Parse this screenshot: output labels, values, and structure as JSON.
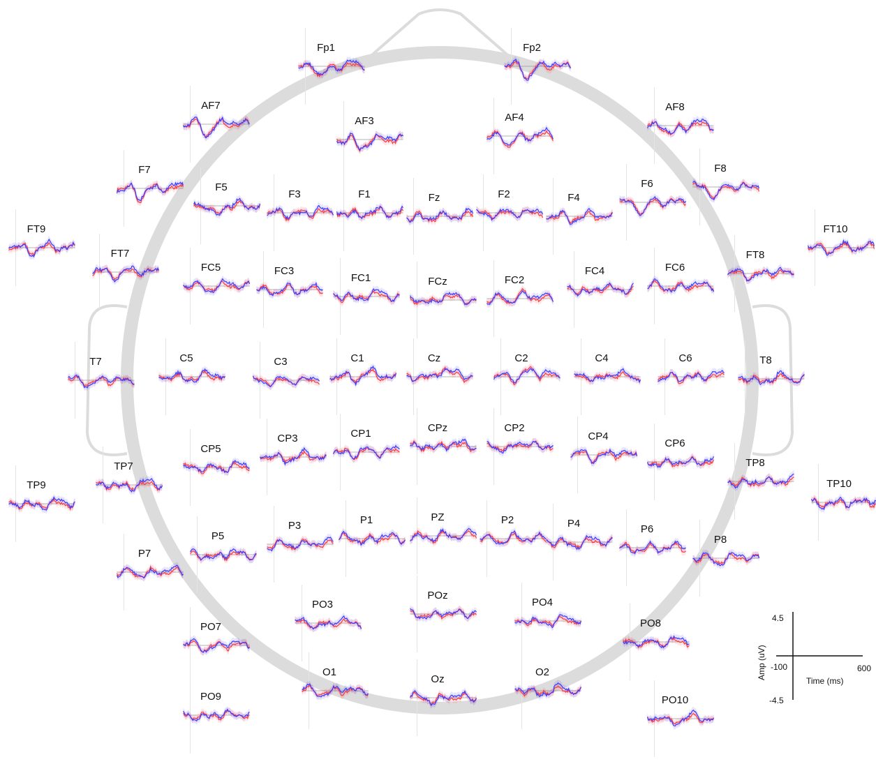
{
  "chart_data": {
    "type": "line",
    "colors": {
      "series_a": "#ff3b3b",
      "series_b": "#3b3bff",
      "head": "#d9d9d9",
      "baseline": "#9a9a9a"
    },
    "electrodes": [
      {
        "name": "Fp1",
        "col": 475,
        "row": 95
      },
      {
        "name": "Fp2",
        "col": 770,
        "row": 95
      },
      {
        "name": "AF7",
        "col": 310,
        "row": 178
      },
      {
        "name": "AF3",
        "col": 530,
        "row": 200
      },
      {
        "name": "AF4",
        "col": 745,
        "row": 195
      },
      {
        "name": "AF8",
        "col": 975,
        "row": 180
      },
      {
        "name": "F7",
        "col": 215,
        "row": 270
      },
      {
        "name": "F5",
        "col": 325,
        "row": 295
      },
      {
        "name": "F3",
        "col": 430,
        "row": 305
      },
      {
        "name": "F1",
        "col": 530,
        "row": 305
      },
      {
        "name": "Fz",
        "col": 630,
        "row": 310
      },
      {
        "name": "F2",
        "col": 730,
        "row": 305
      },
      {
        "name": "F4",
        "col": 830,
        "row": 310
      },
      {
        "name": "F6",
        "col": 935,
        "row": 290
      },
      {
        "name": "F8",
        "col": 1040,
        "row": 268
      },
      {
        "name": "FT9",
        "col": 60,
        "row": 355
      },
      {
        "name": "FT7",
        "col": 180,
        "row": 390
      },
      {
        "name": "FC5",
        "col": 310,
        "row": 410
      },
      {
        "name": "FC3",
        "col": 415,
        "row": 415
      },
      {
        "name": "FC1",
        "col": 525,
        "row": 425
      },
      {
        "name": "FCz",
        "col": 635,
        "row": 430
      },
      {
        "name": "FC2",
        "col": 745,
        "row": 428
      },
      {
        "name": "FC4",
        "col": 860,
        "row": 415
      },
      {
        "name": "FC6",
        "col": 975,
        "row": 410
      },
      {
        "name": "FT8",
        "col": 1090,
        "row": 392
      },
      {
        "name": "FT10",
        "col": 1205,
        "row": 355
      },
      {
        "name": "T7",
        "col": 145,
        "row": 545
      },
      {
        "name": "C5",
        "col": 275,
        "row": 540
      },
      {
        "name": "C3",
        "col": 410,
        "row": 545
      },
      {
        "name": "C1",
        "col": 520,
        "row": 540
      },
      {
        "name": "Cz",
        "col": 630,
        "row": 540
      },
      {
        "name": "C2",
        "col": 755,
        "row": 540
      },
      {
        "name": "C4",
        "col": 870,
        "row": 540
      },
      {
        "name": "C6",
        "col": 990,
        "row": 540
      },
      {
        "name": "T8",
        "col": 1105,
        "row": 543
      },
      {
        "name": "TP9",
        "col": 60,
        "row": 722
      },
      {
        "name": "TP7",
        "col": 185,
        "row": 695
      },
      {
        "name": "CP5",
        "col": 310,
        "row": 670
      },
      {
        "name": "CP3",
        "col": 420,
        "row": 655
      },
      {
        "name": "CP1",
        "col": 525,
        "row": 648
      },
      {
        "name": "CPz",
        "col": 635,
        "row": 640
      },
      {
        "name": "CP2",
        "col": 745,
        "row": 640
      },
      {
        "name": "CP4",
        "col": 865,
        "row": 652
      },
      {
        "name": "CP6",
        "col": 975,
        "row": 662
      },
      {
        "name": "TP8",
        "col": 1090,
        "row": 690
      },
      {
        "name": "TP10",
        "col": 1210,
        "row": 720
      },
      {
        "name": "P7",
        "col": 215,
        "row": 820
      },
      {
        "name": "P5",
        "col": 320,
        "row": 795
      },
      {
        "name": "P3",
        "col": 430,
        "row": 780
      },
      {
        "name": "P1",
        "col": 533,
        "row": 772
      },
      {
        "name": "PZ",
        "col": 635,
        "row": 768
      },
      {
        "name": "P2",
        "col": 735,
        "row": 772
      },
      {
        "name": "P4",
        "col": 830,
        "row": 777
      },
      {
        "name": "P6",
        "col": 935,
        "row": 785
      },
      {
        "name": "P8",
        "col": 1040,
        "row": 800
      },
      {
        "name": "PO7",
        "col": 310,
        "row": 925
      },
      {
        "name": "PO3",
        "col": 470,
        "row": 893
      },
      {
        "name": "POz",
        "col": 635,
        "row": 880
      },
      {
        "name": "PO4",
        "col": 785,
        "row": 890
      },
      {
        "name": "PO8",
        "col": 940,
        "row": 920
      },
      {
        "name": "O1",
        "col": 480,
        "row": 990
      },
      {
        "name": "Oz",
        "col": 635,
        "row": 1000
      },
      {
        "name": "O2",
        "col": 785,
        "row": 990
      },
      {
        "name": "PO9",
        "col": 310,
        "row": 1025
      },
      {
        "name": "PO10",
        "col": 975,
        "row": 1030
      }
    ],
    "scale": {
      "y_max_label": "4.5",
      "y_min_label": "-4.5",
      "x_min_label": "-100",
      "x_max_label": "600",
      "xlabel": "Time (ms)",
      "ylabel": "Amp (uV)"
    }
  }
}
